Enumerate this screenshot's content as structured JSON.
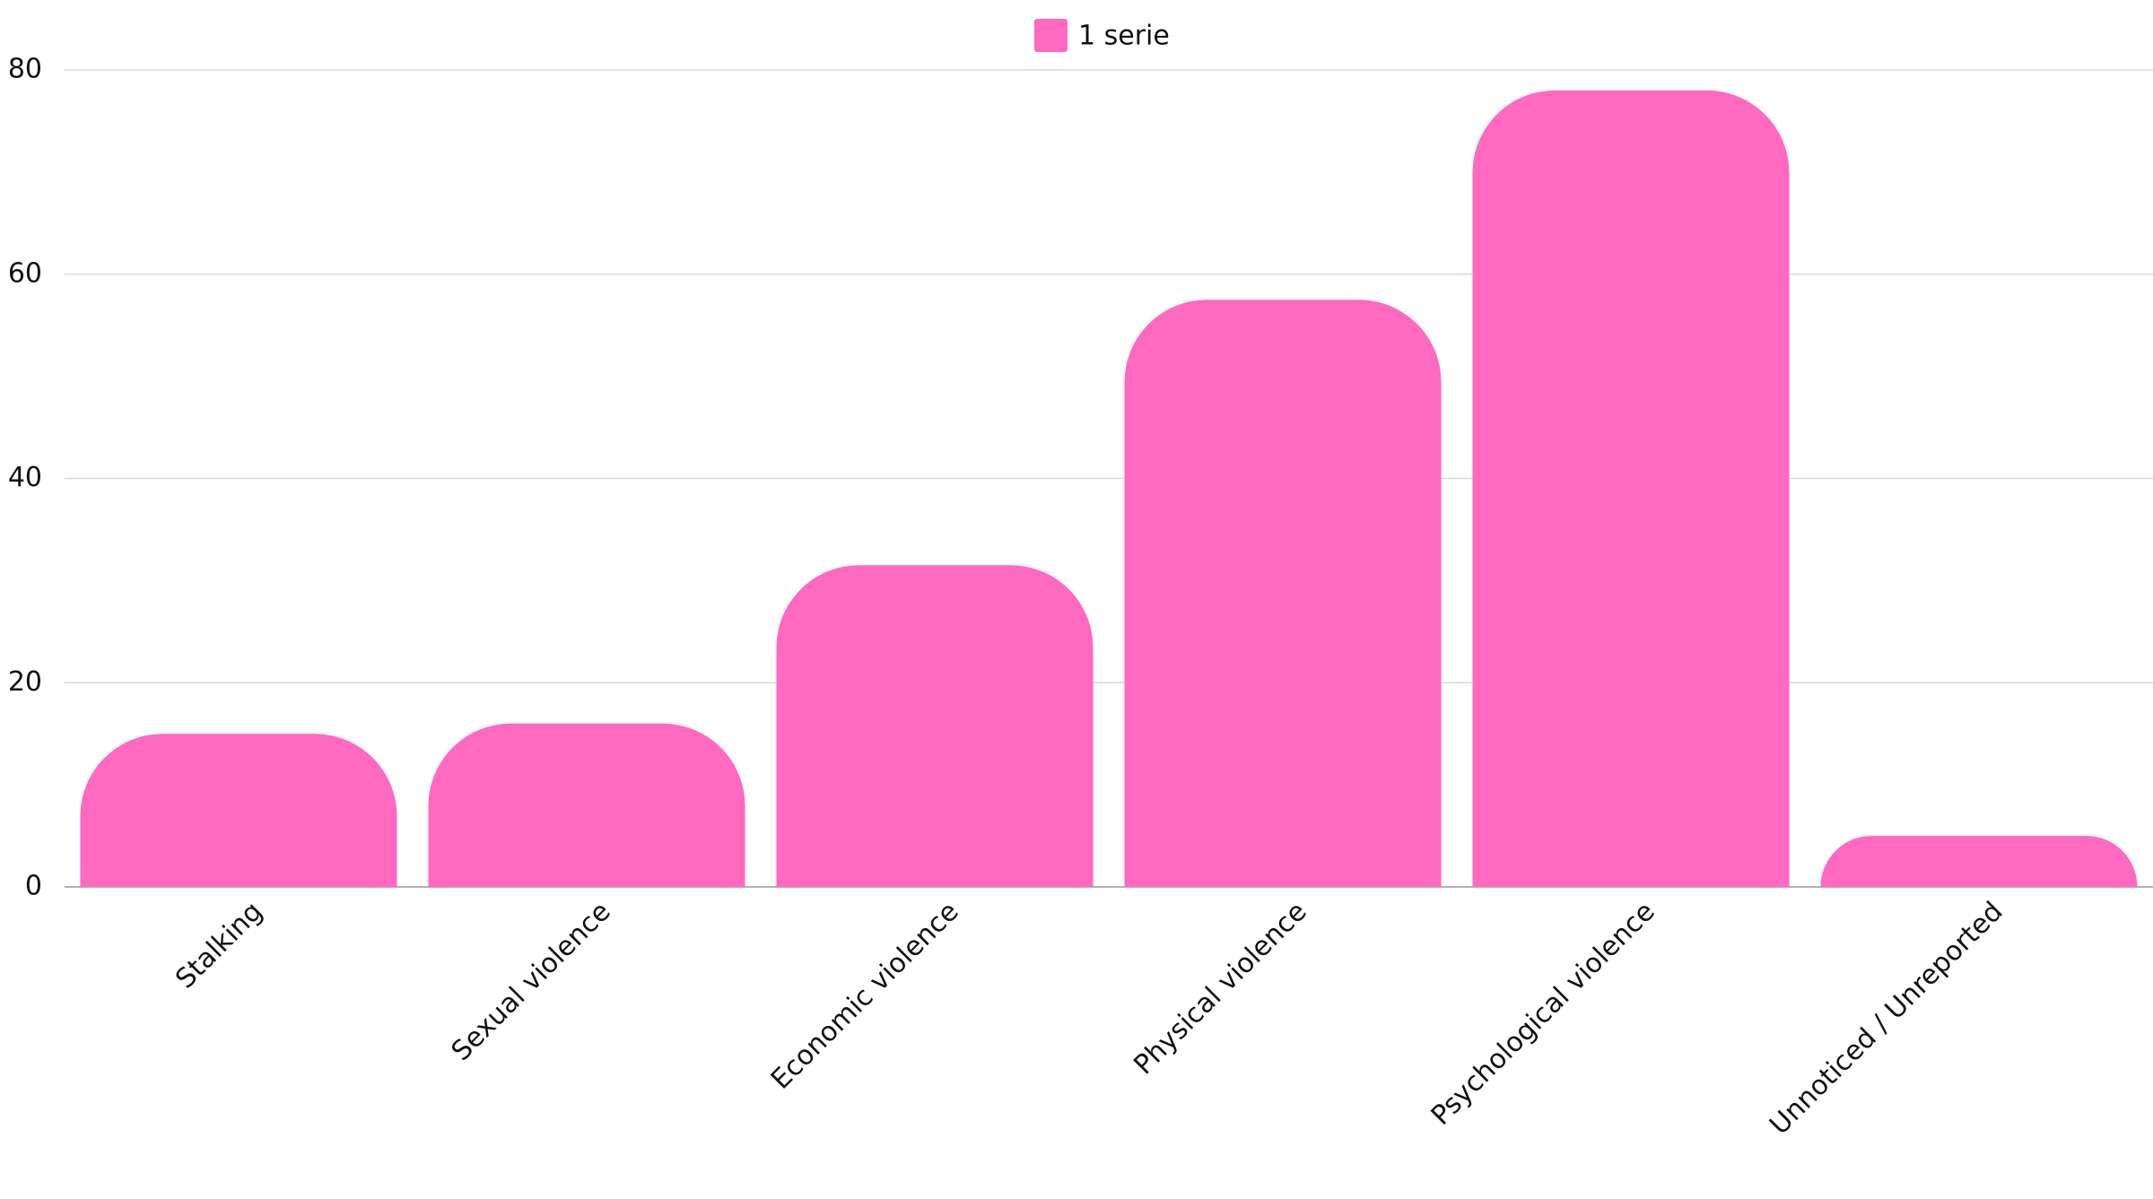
{
  "chart_data": {
    "type": "bar",
    "categories": [
      "Stalking",
      "Sexual violence",
      "Economic violence",
      "Physical violence",
      "Psychological violence",
      "Unnoticed / Unreported"
    ],
    "series": [
      {
        "name": "1 serie",
        "color": "#ff69c0",
        "values": [
          15,
          16,
          31.5,
          57.5,
          78,
          5
        ]
      }
    ],
    "ylim": [
      0,
      80
    ],
    "yticks": [
      0,
      20,
      40,
      60,
      80
    ],
    "grid": true,
    "legend": "top"
  }
}
